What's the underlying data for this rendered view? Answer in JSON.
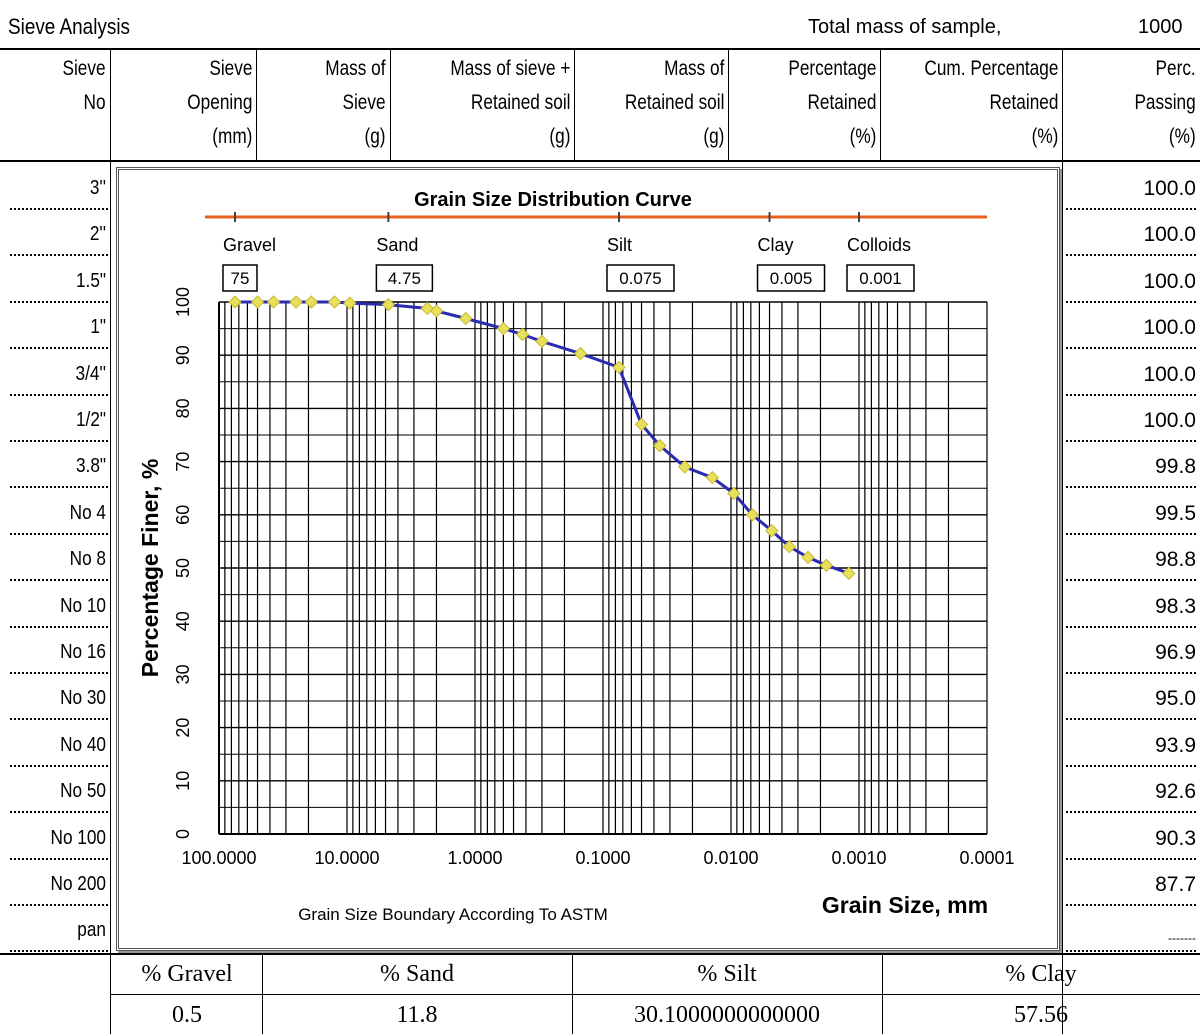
{
  "sheet": {
    "title": "Sieve Analysis",
    "total_mass_label": "Total mass of sample,",
    "total_mass_value": "1000"
  },
  "columns": [
    {
      "lines": [
        "Sieve",
        "No"
      ]
    },
    {
      "lines": [
        "Sieve",
        "Opening",
        "(mm)"
      ]
    },
    {
      "lines": [
        "Mass of",
        "Sieve",
        "(g)"
      ]
    },
    {
      "lines": [
        "Mass of sieve +",
        "Retained soil",
        "(g)"
      ]
    },
    {
      "lines": [
        "Mass of",
        "Retained soil",
        "(g)"
      ]
    },
    {
      "lines": [
        "Percentage",
        "Retained",
        "(%)"
      ]
    },
    {
      "lines": [
        "Cum. Percentage",
        "Retained",
        "(%)"
      ]
    },
    {
      "lines": [
        "Perc.",
        "Passing",
        "(%)"
      ]
    }
  ],
  "rows": [
    {
      "sieve": "3''",
      "passing": "100.0"
    },
    {
      "sieve": "2''",
      "passing": "100.0"
    },
    {
      "sieve": "1.5\"",
      "passing": "100.0"
    },
    {
      "sieve": "1\"",
      "passing": "100.0"
    },
    {
      "sieve": "3/4''",
      "passing": "100.0"
    },
    {
      "sieve": "1/2\"",
      "passing": "100.0"
    },
    {
      "sieve": "3.8\"",
      "passing": "99.8"
    },
    {
      "sieve": "No 4",
      "passing": "99.5"
    },
    {
      "sieve": "No 8",
      "passing": "98.8"
    },
    {
      "sieve": "No 10",
      "passing": "98.3"
    },
    {
      "sieve": "No 16",
      "passing": "96.9"
    },
    {
      "sieve": "No 30",
      "passing": "95.0"
    },
    {
      "sieve": "No 40",
      "passing": "93.9"
    },
    {
      "sieve": "No 50",
      "passing": "92.6"
    },
    {
      "sieve": "No 100",
      "passing": "90.3"
    },
    {
      "sieve": "No 200",
      "passing": "87.7"
    },
    {
      "sieve": "pan",
      "passing": "-------"
    }
  ],
  "summary": {
    "headers": [
      "% Gravel",
      "% Sand",
      "% Silt",
      "% Clay"
    ],
    "values": [
      "0.5",
      "11.8",
      "30.1000000000000",
      "57.56"
    ]
  },
  "chart_data": {
    "type": "line",
    "title": "Grain Size Distribution Curve",
    "xlabel": "Grain Size, mm",
    "ylabel": "Percentage Finer, %",
    "x_scale": "log",
    "x_reversed": true,
    "xlim": [
      100,
      0.0001
    ],
    "ylim": [
      0,
      100
    ],
    "x_tick_labels": [
      "100.0000",
      "10.0000",
      "1.0000",
      "0.1000",
      "0.0100",
      "0.0010",
      "0.0001"
    ],
    "x_ticks": [
      100,
      10,
      1,
      0.1,
      0.01,
      0.001,
      0.0001
    ],
    "y_tick_labels": [
      "0",
      "10",
      "20",
      "30",
      "40",
      "50",
      "60",
      "70",
      "80",
      "90",
      "100"
    ],
    "y_ticks": [
      0,
      10,
      20,
      30,
      40,
      50,
      60,
      70,
      80,
      90,
      100
    ],
    "grid": true,
    "line_color": "#2b2bb0",
    "marker_color": "#e8e05a",
    "boundary_color": "#e8631a",
    "series": [
      {
        "x": [
          75,
          50,
          37.5,
          25,
          19,
          12.5,
          9.5,
          4.75,
          2.36,
          2.0,
          1.18,
          0.6,
          0.425,
          0.3,
          0.15,
          0.075,
          0.05,
          0.036,
          0.023,
          0.014,
          0.0095,
          0.0068,
          0.0048,
          0.0035,
          0.0025,
          0.0018,
          0.0012
        ],
        "y": [
          100,
          100,
          100,
          100,
          100,
          100,
          99.8,
          99.5,
          98.8,
          98.3,
          96.9,
          95.0,
          93.9,
          92.6,
          90.3,
          87.7,
          77,
          73,
          69,
          67,
          64,
          60,
          57,
          54,
          52,
          50.5,
          49
        ]
      }
    ],
    "boundary_footer": "Grain Size Boundary According To ASTM",
    "boundaries": [
      {
        "name": "Gravel",
        "value": "75",
        "x": 75
      },
      {
        "name": "Sand",
        "value": "4.75",
        "x": 4.75
      },
      {
        "name": "Silt",
        "value": "0.075",
        "x": 0.075
      },
      {
        "name": "Clay",
        "value": "0.005",
        "x": 0.005
      },
      {
        "name": "Colloids",
        "value": "0.001",
        "x": 0.001
      }
    ]
  }
}
